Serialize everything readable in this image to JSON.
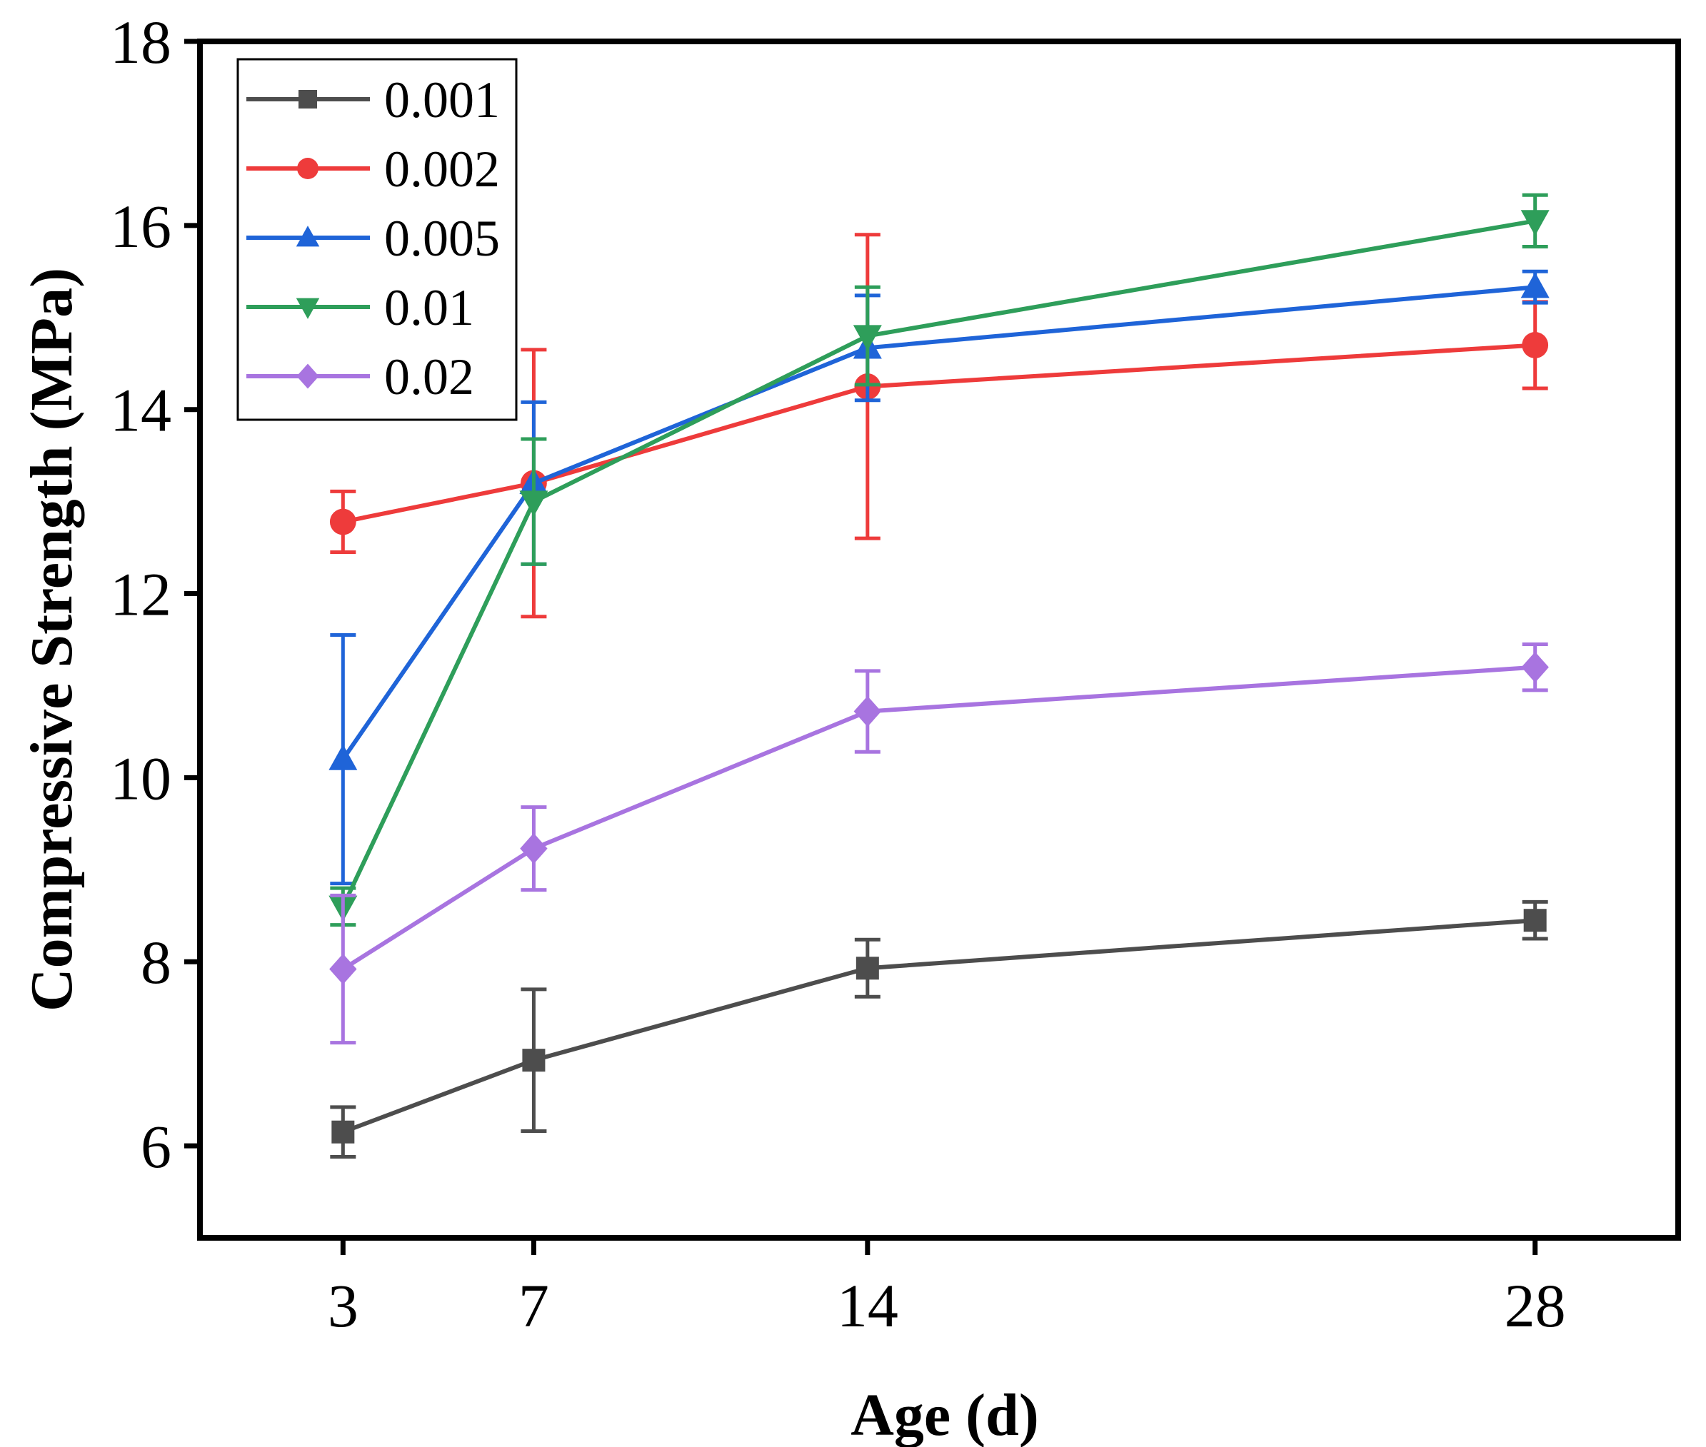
{
  "chart_data": {
    "type": "line",
    "title": "",
    "xlabel": "Age (d)",
    "ylabel": "Compressive Strength (MPa)",
    "x": [
      3,
      7,
      14,
      28
    ],
    "xticks": [
      "3",
      "7",
      "14",
      "28"
    ],
    "xlim": [
      0,
      31
    ],
    "ylim": [
      5,
      18
    ],
    "yticks": [
      "6",
      "8",
      "10",
      "12",
      "14",
      "16",
      "18"
    ],
    "grid": false,
    "legend_position": "top-left",
    "series": [
      {
        "name": "0.001",
        "color": "#4d4d4d",
        "marker": "square",
        "values": [
          6.15,
          6.93,
          7.93,
          8.45
        ],
        "errors": [
          0.27,
          0.77,
          0.31,
          0.2
        ]
      },
      {
        "name": "0.002",
        "color": "#ee3b3b",
        "marker": "circle",
        "values": [
          12.78,
          13.2,
          14.25,
          14.7
        ],
        "errors": [
          0.33,
          1.45,
          1.65,
          0.47
        ]
      },
      {
        "name": "0.005",
        "color": "#1f64d8",
        "marker": "triangle-up",
        "values": [
          10.2,
          13.2,
          14.67,
          15.33
        ],
        "errors": [
          1.35,
          0.88,
          0.57,
          0.17
        ]
      },
      {
        "name": "0.01",
        "color": "#2e9e5a",
        "marker": "triangle-down",
        "values": [
          8.6,
          13.0,
          14.8,
          16.05
        ],
        "errors": [
          0.2,
          0.68,
          0.53,
          0.28
        ]
      },
      {
        "name": "0.02",
        "color": "#a874e0",
        "marker": "diamond",
        "values": [
          7.92,
          9.23,
          10.72,
          11.2
        ],
        "errors": [
          0.8,
          0.45,
          0.44,
          0.25
        ]
      }
    ]
  }
}
